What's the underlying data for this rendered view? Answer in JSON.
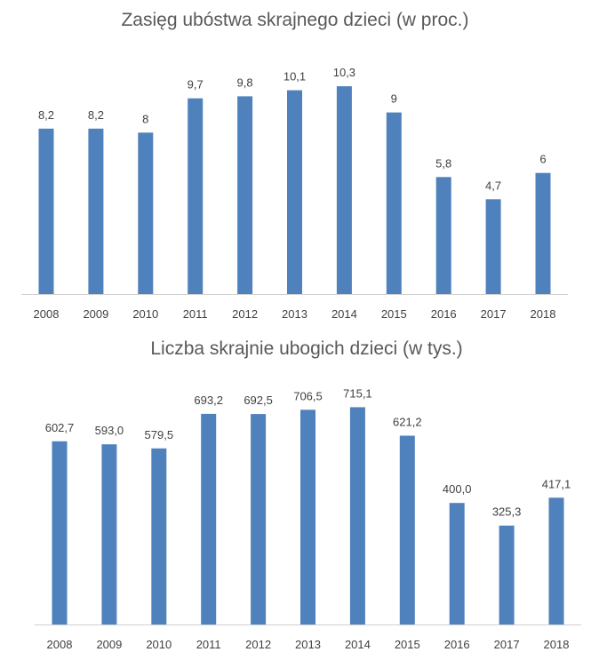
{
  "chart_data": [
    {
      "type": "bar",
      "title": "Zasięg ubóstwa skrajnego dzieci (w proc.)",
      "xlabel": "",
      "ylabel": "",
      "categories": [
        "2008",
        "2009",
        "2010",
        "2011",
        "2012",
        "2013",
        "2014",
        "2015",
        "2016",
        "2017",
        "2018"
      ],
      "values": [
        8.2,
        8.2,
        8,
        9.7,
        9.8,
        10.1,
        10.3,
        9,
        5.8,
        4.7,
        6
      ],
      "data_labels": [
        "8,2",
        "8,2",
        "8",
        "9,7",
        "9,8",
        "10,1",
        "10,3",
        "9",
        "5,8",
        "4,7",
        "6"
      ],
      "ylim": [
        0,
        10.7
      ],
      "grid": false,
      "legend": "none",
      "bar_color": "#4f81bd"
    },
    {
      "type": "bar",
      "title": "Liczba skrajnie ubogich dzieci (w tys.)",
      "xlabel": "",
      "ylabel": "",
      "categories": [
        "2008",
        "2009",
        "2010",
        "2011",
        "2012",
        "2013",
        "2014",
        "2015",
        "2016",
        "2017",
        "2018"
      ],
      "values": [
        602.7,
        593.0,
        579.5,
        693.2,
        692.5,
        706.5,
        715.1,
        621.2,
        400.0,
        325.3,
        417.1
      ],
      "data_labels": [
        "602,7",
        "593,0",
        "579,5",
        "693,2",
        "692,5",
        "706,5",
        "715,1",
        "621,2",
        "400,0",
        "325,3",
        "417,1"
      ],
      "ylim": [
        0,
        725
      ],
      "grid": false,
      "legend": "none",
      "bar_color": "#4f81bd"
    }
  ]
}
